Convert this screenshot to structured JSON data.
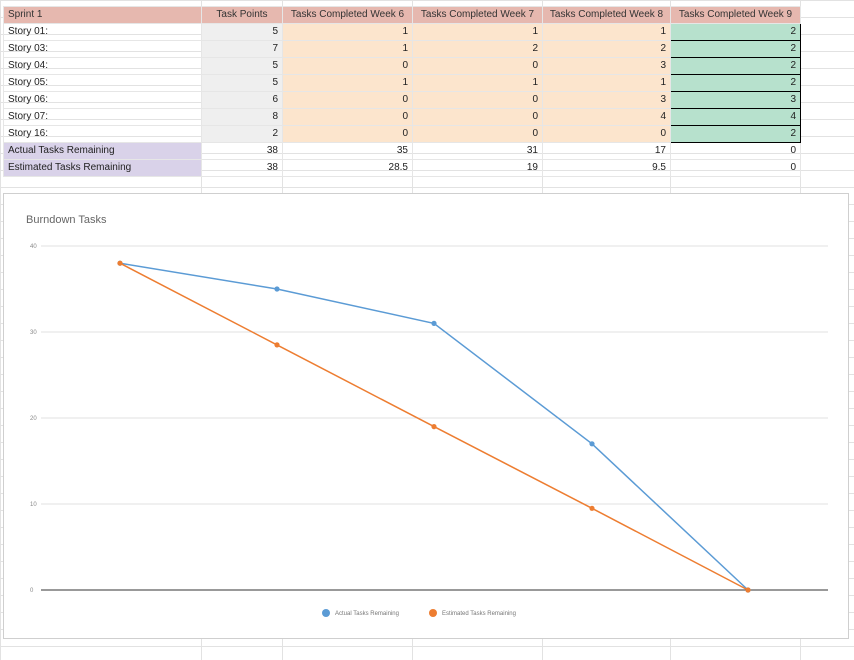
{
  "sheet": {
    "headers": [
      "Sprint 1",
      "Task Points",
      "Tasks Completed Week 6",
      "Tasks Completed Week 7",
      "Tasks Completed Week 8",
      "Tasks Completed Week 9"
    ],
    "stories": [
      {
        "label": "Story 01:",
        "points": "5",
        "w6": "1",
        "w7": "1",
        "w8": "1",
        "w9": "2"
      },
      {
        "label": "Story 03:",
        "points": "7",
        "w6": "1",
        "w7": "2",
        "w8": "2",
        "w9": "2"
      },
      {
        "label": "Story 04:",
        "points": "5",
        "w6": "0",
        "w7": "0",
        "w8": "3",
        "w9": "2"
      },
      {
        "label": "Story 05:",
        "points": "5",
        "w6": "1",
        "w7": "1",
        "w8": "1",
        "w9": "2"
      },
      {
        "label": "Story 06:",
        "points": "6",
        "w6": "0",
        "w7": "0",
        "w8": "3",
        "w9": "3"
      },
      {
        "label": "Story 07:",
        "points": "8",
        "w6": "0",
        "w7": "0",
        "w8": "4",
        "w9": "4"
      },
      {
        "label": "Story 16:",
        "points": "2",
        "w6": "0",
        "w7": "0",
        "w8": "0",
        "w9": "2"
      }
    ],
    "actual": {
      "label": "Actual Tasks Remaining",
      "values": [
        "38",
        "35",
        "31",
        "17",
        "0"
      ]
    },
    "estimated": {
      "label": "Estimated Tasks Remaining",
      "values": [
        "38",
        "28.5",
        "19",
        "9.5",
        "0"
      ]
    }
  },
  "chart_data": {
    "type": "line",
    "title": "Burndown Tasks",
    "x": [
      1,
      2,
      3,
      4,
      5
    ],
    "ylim": [
      0,
      40
    ],
    "yticks": [
      "0",
      "10",
      "20",
      "30",
      "40"
    ],
    "grid": true,
    "legend": "bottom",
    "series": [
      {
        "name": "Actual Tasks Remaining",
        "color": "#5b9bd5",
        "values": [
          38,
          35,
          31,
          17,
          0
        ]
      },
      {
        "name": "Estimated Tasks Remaining",
        "color": "#ed7d31",
        "values": [
          38,
          28.5,
          19,
          9.5,
          0
        ]
      }
    ]
  }
}
